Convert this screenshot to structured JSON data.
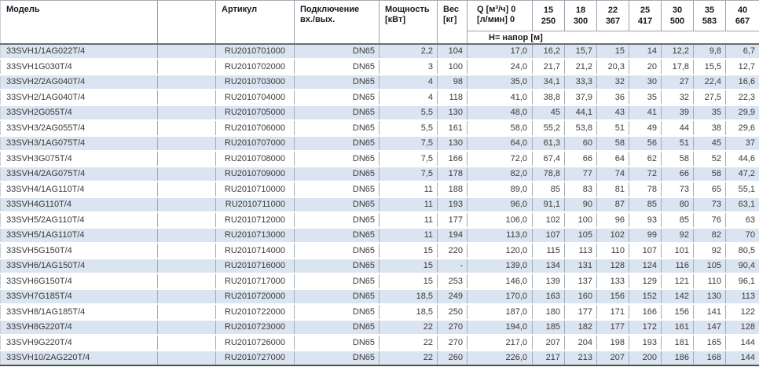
{
  "table": {
    "header": {
      "model": "Модель",
      "article": "Артикул",
      "connection_line1": "Подключение",
      "connection_line2": "вх./вых.",
      "power_line1": "Мощность",
      "power_line2": "[кВт]",
      "weight_line1": "Вес",
      "weight_line2": "[кг]",
      "q_line1": "Q [м³/ч] 0",
      "q_line2": "[л/мин] 0",
      "head_label": "Н= напор [м]",
      "flow_columns": [
        {
          "m3h": "15",
          "lmin": "250"
        },
        {
          "m3h": "18",
          "lmin": "300"
        },
        {
          "m3h": "22",
          "lmin": "367"
        },
        {
          "m3h": "25",
          "lmin": "417"
        },
        {
          "m3h": "30",
          "lmin": "500"
        },
        {
          "m3h": "35",
          "lmin": "583"
        },
        {
          "m3h": "40",
          "lmin": "667"
        }
      ]
    },
    "rows": [
      {
        "model": "33SVH1/1AG022T/4",
        "article": "RU2010701000",
        "connection": "DN65",
        "power": "2,2",
        "weight": "104",
        "head_values": [
          "17,0",
          "16,2",
          "15,7",
          "15",
          "14",
          "12,2",
          "9,8",
          "6,7"
        ]
      },
      {
        "model": "33SVH1G030T/4",
        "article": "RU2010702000",
        "connection": "DN65",
        "power": "3",
        "weight": "100",
        "head_values": [
          "24,0",
          "21,7",
          "21,2",
          "20,3",
          "20",
          "17,8",
          "15,5",
          "12,7"
        ]
      },
      {
        "model": "33SVH2/2AG040T/4",
        "article": "RU2010703000",
        "connection": "DN65",
        "power": "4",
        "weight": "98",
        "head_values": [
          "35,0",
          "34,1",
          "33,3",
          "32",
          "30",
          "27",
          "22,4",
          "16,6"
        ]
      },
      {
        "model": "33SVH2/1AG040T/4",
        "article": "RU2010704000",
        "connection": "DN65",
        "power": "4",
        "weight": "118",
        "head_values": [
          "41,0",
          "38,8",
          "37,9",
          "36",
          "35",
          "32",
          "27,5",
          "22,3"
        ]
      },
      {
        "model": "33SVH2G055T/4",
        "article": "RU2010705000",
        "connection": "DN65",
        "power": "5,5",
        "weight": "130",
        "head_values": [
          "48,0",
          "45",
          "44,1",
          "43",
          "41",
          "39",
          "35",
          "29,9"
        ]
      },
      {
        "model": "33SVH3/2AG055T/4",
        "article": "RU2010706000",
        "connection": "DN65",
        "power": "5,5",
        "weight": "161",
        "head_values": [
          "58,0",
          "55,2",
          "53,8",
          "51",
          "49",
          "44",
          "38",
          "29,6"
        ]
      },
      {
        "model": "33SVH3/1AG075T/4",
        "article": "RU2010707000",
        "connection": "DN65",
        "power": "7,5",
        "weight": "130",
        "head_values": [
          "64,0",
          "61,3",
          "60",
          "58",
          "56",
          "51",
          "45",
          "37"
        ]
      },
      {
        "model": "33SVH3G075T/4",
        "article": "RU2010708000",
        "connection": "DN65",
        "power": "7,5",
        "weight": "166",
        "head_values": [
          "72,0",
          "67,4",
          "66",
          "64",
          "62",
          "58",
          "52",
          "44,6"
        ]
      },
      {
        "model": "33SVH4/2AG075T/4",
        "article": "RU2010709000",
        "connection": "DN65",
        "power": "7,5",
        "weight": "178",
        "head_values": [
          "82,0",
          "78,8",
          "77",
          "74",
          "72",
          "66",
          "58",
          "47,2"
        ]
      },
      {
        "model": "33SVH4/1AG110T/4",
        "article": "RU2010710000",
        "connection": "DN65",
        "power": "11",
        "weight": "188",
        "head_values": [
          "89,0",
          "85",
          "83",
          "81",
          "78",
          "73",
          "65",
          "55,1"
        ]
      },
      {
        "model": "33SVH4G110T/4",
        "article": "RU2010711000",
        "connection": "DN65",
        "power": "11",
        "weight": "193",
        "head_values": [
          "96,0",
          "91,1",
          "90",
          "87",
          "85",
          "80",
          "73",
          "63,1"
        ]
      },
      {
        "model": "33SVH5/2AG110T/4",
        "article": "RU2010712000",
        "connection": "DN65",
        "power": "11",
        "weight": "177",
        "head_values": [
          "106,0",
          "102",
          "100",
          "96",
          "93",
          "85",
          "76",
          "63"
        ]
      },
      {
        "model": "33SVH5/1AG110T/4",
        "article": "RU2010713000",
        "connection": "DN65",
        "power": "11",
        "weight": "194",
        "head_values": [
          "113,0",
          "107",
          "105",
          "102",
          "99",
          "92",
          "82",
          "70"
        ]
      },
      {
        "model": "33SVH5G150T/4",
        "article": "RU2010714000",
        "connection": "DN65",
        "power": "15",
        "weight": "220",
        "head_values": [
          "120,0",
          "115",
          "113",
          "110",
          "107",
          "101",
          "92",
          "80,5"
        ]
      },
      {
        "model": "33SVH6/1AG150T/4",
        "article": "RU2010716000",
        "connection": "DN65",
        "power": "15",
        "weight": "-",
        "head_values": [
          "139,0",
          "134",
          "131",
          "128",
          "124",
          "116",
          "105",
          "90,4"
        ]
      },
      {
        "model": "33SVH6G150T/4",
        "article": "RU2010717000",
        "connection": "DN65",
        "power": "15",
        "weight": "253",
        "head_values": [
          "146,0",
          "139",
          "137",
          "133",
          "129",
          "121",
          "110",
          "96,1"
        ]
      },
      {
        "model": "33SVH7G185T/4",
        "article": "RU2010720000",
        "connection": "DN65",
        "power": "18,5",
        "weight": "249",
        "head_values": [
          "170,0",
          "163",
          "160",
          "156",
          "152",
          "142",
          "130",
          "113"
        ]
      },
      {
        "model": "33SVH8/1AG185T/4",
        "article": "RU2010722000",
        "connection": "DN65",
        "power": "18,5",
        "weight": "250",
        "head_values": [
          "187,0",
          "180",
          "177",
          "171",
          "166",
          "156",
          "141",
          "122"
        ]
      },
      {
        "model": "33SVH8G220T/4",
        "article": "RU2010723000",
        "connection": "DN65",
        "power": "22",
        "weight": "270",
        "head_values": [
          "194,0",
          "185",
          "182",
          "177",
          "172",
          "161",
          "147",
          "128"
        ]
      },
      {
        "model": "33SVH9G220T/4",
        "article": "RU2010726000",
        "connection": "DN65",
        "power": "22",
        "weight": "270",
        "head_values": [
          "217,0",
          "207",
          "204",
          "198",
          "193",
          "181",
          "165",
          "144"
        ]
      },
      {
        "model": "33SVH10/2AG220T/4",
        "article": "RU2010727000",
        "connection": "DN65",
        "power": "22",
        "weight": "260",
        "head_values": [
          "226,0",
          "217",
          "213",
          "207",
          "200",
          "186",
          "168",
          "144"
        ]
      }
    ]
  },
  "colors": {
    "stripe_blue": "#dbe5f1",
    "grid_line": "#9aa2aa",
    "header_divider": "#6d6d6d",
    "body_text": "#3a3a3a",
    "header_text": "#1a1a1a"
  }
}
